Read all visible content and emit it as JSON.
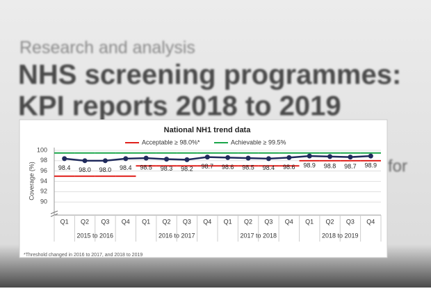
{
  "page": {
    "kicker": "Research and analysis",
    "title_lines": [
      "NHS screening programmes:",
      "KPI reports 2018 to 2019"
    ],
    "fragment": "for"
  },
  "chart_data": {
    "type": "line",
    "title": "National NH1 trend data",
    "y_label": "Coverage (%)",
    "categories": [
      "Q1",
      "Q2",
      "Q3",
      "Q4",
      "Q1",
      "Q2",
      "Q3",
      "Q4",
      "Q1",
      "Q2",
      "Q3",
      "Q4",
      "Q1",
      "Q2",
      "Q3",
      "Q4"
    ],
    "groups": [
      "2015 to 2016",
      "2016 to 2017",
      "2017 to 2018",
      "2018 to 2019"
    ],
    "series": [
      {
        "name": "National",
        "color": "#1f2a5c",
        "values": [
          98.4,
          98.0,
          98.0,
          98.4,
          98.5,
          98.3,
          98.2,
          98.7,
          98.6,
          98.5,
          98.4,
          98.6,
          98.9,
          98.8,
          98.7,
          98.9
        ],
        "value_labels": [
          "98.4",
          "98.0",
          "98.0",
          "98.4",
          "98.5",
          "98.3",
          "98.2",
          "98.7",
          "98.6",
          "98.5",
          "98.4",
          "98.6",
          "98.9",
          "98.8",
          "98.7",
          "98.9"
        ]
      },
      {
        "name": "Acceptable ≥ 98.0%*",
        "color": "#e0201b",
        "step": true,
        "values": [
          95,
          95,
          95,
          95,
          97,
          97,
          97,
          97,
          97,
          97,
          97,
          97,
          98,
          98,
          98,
          98
        ]
      },
      {
        "name": "Achievable ≥ 99.5%",
        "color": "#1aa64a",
        "step": true,
        "values": [
          99.5,
          99.5,
          99.5,
          99.5,
          99.5,
          99.5,
          99.5,
          99.5,
          99.5,
          99.5,
          99.5,
          99.5,
          99.5,
          99.5,
          99.5,
          99.5
        ]
      }
    ],
    "ylim": [
      88,
      100
    ],
    "yticks": [
      90,
      92,
      94,
      96,
      98,
      100
    ],
    "grid": true,
    "footnote": "*Threshold changed in 2016 to 2017, and 2018 to 2019"
  }
}
